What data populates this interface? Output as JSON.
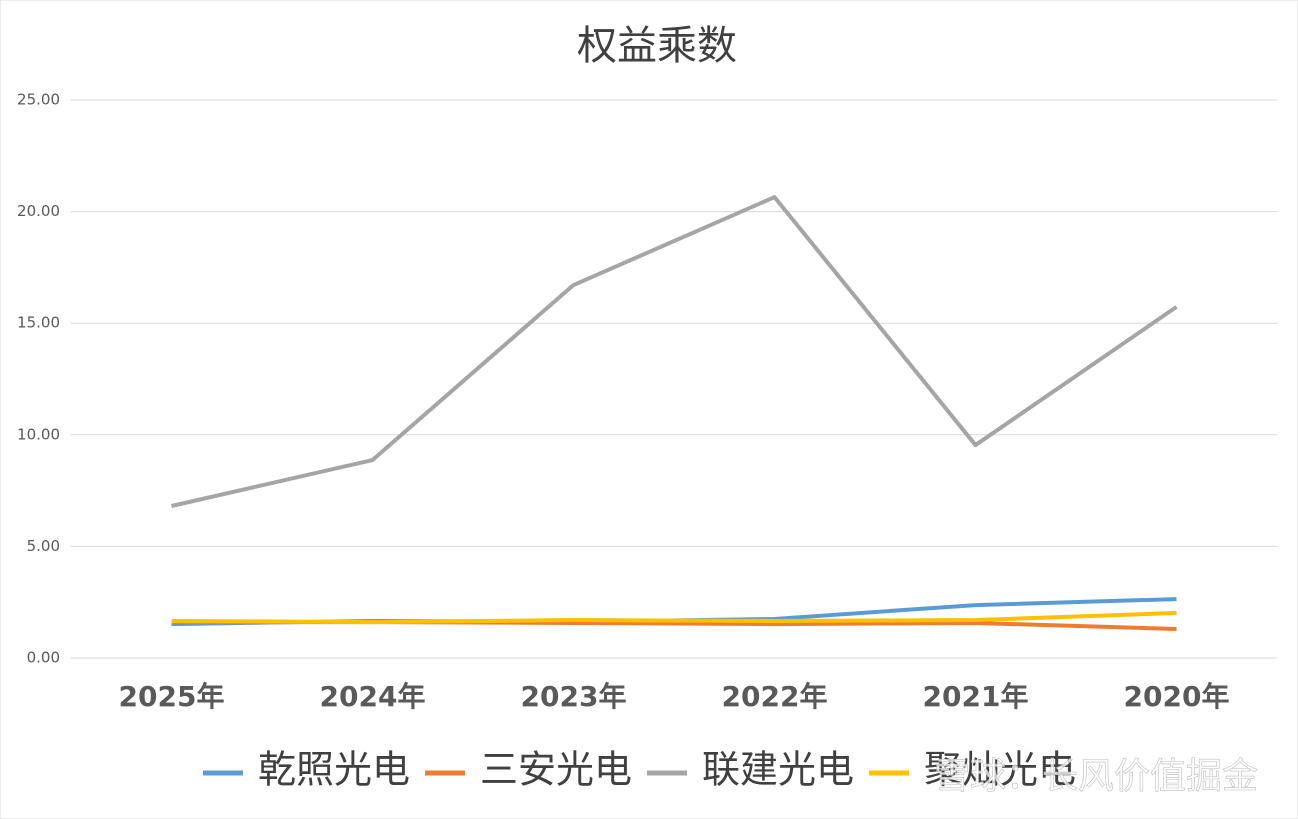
{
  "chart_data": {
    "type": "line",
    "title": "权益乘数",
    "categories": [
      "2025年",
      "2024年",
      "2023年",
      "2022年",
      "2021年",
      "2020年"
    ],
    "series": [
      {
        "name": "乾照光电",
        "color": "#5b9bd5",
        "values": [
          1.52,
          1.66,
          1.62,
          1.75,
          2.37,
          2.64
        ]
      },
      {
        "name": "三安光电",
        "color": "#ed7d31",
        "values": [
          1.61,
          1.61,
          1.57,
          1.52,
          1.57,
          1.3
        ]
      },
      {
        "name": "联建光电",
        "color": "#a5a5a5",
        "values": [
          6.81,
          8.87,
          16.71,
          20.65,
          9.54,
          15.73
        ]
      },
      {
        "name": "聚灿光电",
        "color": "#ffc000",
        "values": [
          1.66,
          1.61,
          1.7,
          1.66,
          1.7,
          2.02
        ]
      }
    ],
    "ylim": [
      0,
      25
    ],
    "yticks": [
      {
        "value": 0,
        "label": "0.00"
      },
      {
        "value": 5,
        "label": "5.00"
      },
      {
        "value": 10,
        "label": "10.00"
      },
      {
        "value": 15,
        "label": "15.00"
      },
      {
        "value": 20,
        "label": "20.00"
      },
      {
        "value": 25,
        "label": "25.00"
      }
    ],
    "grid": true,
    "legend": "bottom",
    "watermark": "雪球：长风价值掘金"
  }
}
